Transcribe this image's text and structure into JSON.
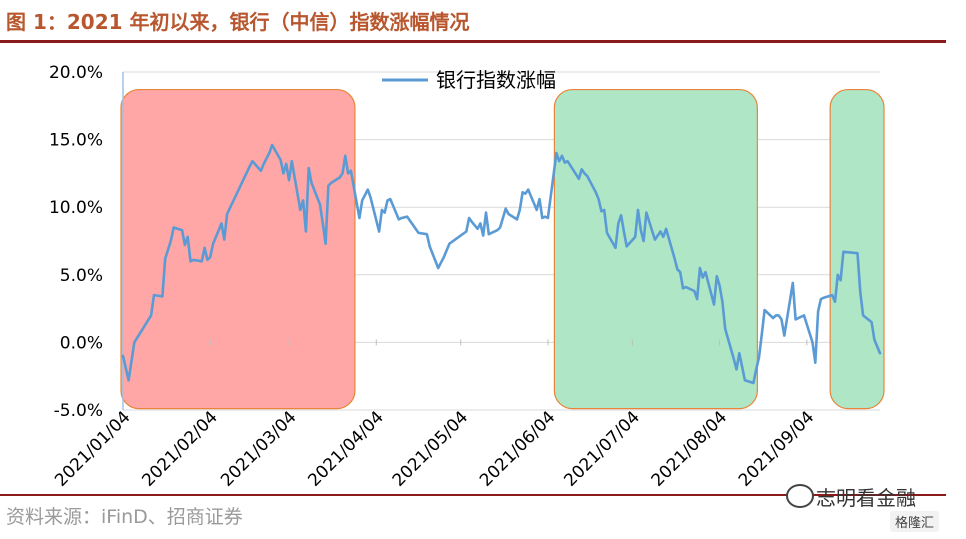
{
  "header": {
    "figure_title": "图 1：2021 年初以来，银行（中信）指数涨幅情况"
  },
  "footer": {
    "source": "资料来源：iFinD、招商证券"
  },
  "watermark": {
    "name": "志明看金融",
    "badge": "格隆汇"
  },
  "colors": {
    "title": "#b8562e",
    "rule": "#8b1a1a",
    "series": "#5b9bd5",
    "up_box_fill": "#ffa6a6",
    "down_box_fill": "#aee6c6",
    "box_border": "#e8853a"
  },
  "chart_data": {
    "type": "line",
    "title": "",
    "xlabel": "",
    "ylabel": "",
    "ylim": [
      -5,
      20
    ],
    "yticks": [
      -5,
      0,
      5,
      10,
      15,
      20
    ],
    "ytick_labels": [
      "-5.0%",
      "0.0%",
      "5.0%",
      "10.0%",
      "15.0%",
      "20.0%"
    ],
    "xlim": [
      "2021-01-04",
      "2021-09-30"
    ],
    "xticks": [
      "2021-01-04",
      "2021-02-04",
      "2021-03-04",
      "2021-04-04",
      "2021-05-04",
      "2021-06-04",
      "2021-07-04",
      "2021-08-04",
      "2021-09-04"
    ],
    "xtick_labels": [
      "2021/01/04",
      "2021/02/04",
      "2021/03/04",
      "2021/04/04",
      "2021/05/04",
      "2021/06/04",
      "2021/07/04",
      "2021/08/04",
      "2021/09/04"
    ],
    "grid": "horizontal",
    "legend": "top-center",
    "series": [
      {
        "name": "银行指数涨幅",
        "points": [
          [
            "2021-01-04",
            -1.0
          ],
          [
            "2021-01-06",
            -2.8
          ],
          [
            "2021-01-08",
            0.0
          ],
          [
            "2021-01-11",
            1.0
          ],
          [
            "2021-01-14",
            2.0
          ],
          [
            "2021-01-15",
            3.5
          ],
          [
            "2021-01-18",
            3.4
          ],
          [
            "2021-01-19",
            6.2
          ],
          [
            "2021-01-21",
            7.5
          ],
          [
            "2021-01-22",
            8.5
          ],
          [
            "2021-01-25",
            8.3
          ],
          [
            "2021-01-26",
            7.2
          ],
          [
            "2021-01-27",
            7.8
          ],
          [
            "2021-01-28",
            6.0
          ],
          [
            "2021-01-29",
            6.1
          ],
          [
            "2021-02-01",
            6.0
          ],
          [
            "2021-02-02",
            7.0
          ],
          [
            "2021-02-03",
            6.1
          ],
          [
            "2021-02-04",
            6.3
          ],
          [
            "2021-02-05",
            7.3
          ],
          [
            "2021-02-08",
            8.8
          ],
          [
            "2021-02-09",
            7.6
          ],
          [
            "2021-02-10",
            9.5
          ],
          [
            "2021-02-18",
            13.0
          ],
          [
            "2021-02-19",
            13.4
          ],
          [
            "2021-02-22",
            12.7
          ],
          [
            "2021-02-23",
            13.2
          ],
          [
            "2021-02-25",
            14.0
          ],
          [
            "2021-02-26",
            14.6
          ],
          [
            "2021-03-01",
            13.5
          ],
          [
            "2021-03-02",
            12.5
          ],
          [
            "2021-03-03",
            13.2
          ],
          [
            "2021-03-04",
            12.0
          ],
          [
            "2021-03-05",
            13.4
          ],
          [
            "2021-03-08",
            9.8
          ],
          [
            "2021-03-09",
            10.5
          ],
          [
            "2021-03-10",
            8.2
          ],
          [
            "2021-03-11",
            12.9
          ],
          [
            "2021-03-12",
            11.8
          ],
          [
            "2021-03-15",
            10.2
          ],
          [
            "2021-03-16",
            8.8
          ],
          [
            "2021-03-17",
            7.3
          ],
          [
            "2021-03-18",
            11.6
          ],
          [
            "2021-03-19",
            11.8
          ],
          [
            "2021-03-22",
            12.2
          ],
          [
            "2021-03-23",
            12.5
          ],
          [
            "2021-03-24",
            13.8
          ],
          [
            "2021-03-25",
            12.5
          ],
          [
            "2021-03-26",
            12.7
          ],
          [
            "2021-03-29",
            9.2
          ],
          [
            "2021-03-30",
            10.5
          ],
          [
            "2021-04-01",
            11.3
          ],
          [
            "2021-04-02",
            10.7
          ],
          [
            "2021-04-05",
            8.2
          ],
          [
            "2021-04-06",
            9.8
          ],
          [
            "2021-04-07",
            9.6
          ],
          [
            "2021-04-08",
            10.5
          ],
          [
            "2021-04-09",
            10.6
          ],
          [
            "2021-04-12",
            9.1
          ],
          [
            "2021-04-13",
            9.2
          ],
          [
            "2021-04-15",
            9.3
          ],
          [
            "2021-04-16",
            9.0
          ],
          [
            "2021-04-19",
            8.1
          ],
          [
            "2021-04-22",
            8.0
          ],
          [
            "2021-04-23",
            7.1
          ],
          [
            "2021-04-26",
            5.5
          ],
          [
            "2021-04-28",
            6.3
          ],
          [
            "2021-04-30",
            7.3
          ],
          [
            "2021-05-06",
            8.2
          ],
          [
            "2021-05-07",
            9.2
          ],
          [
            "2021-05-08",
            8.9
          ],
          [
            "2021-05-10",
            8.4
          ],
          [
            "2021-05-11",
            8.8
          ],
          [
            "2021-05-12",
            7.9
          ],
          [
            "2021-05-13",
            9.6
          ],
          [
            "2021-05-14",
            8.0
          ],
          [
            "2021-05-17",
            8.3
          ],
          [
            "2021-05-18",
            8.5
          ],
          [
            "2021-05-20",
            9.9
          ],
          [
            "2021-05-21",
            9.5
          ],
          [
            "2021-05-24",
            9.1
          ],
          [
            "2021-05-25",
            9.8
          ],
          [
            "2021-05-26",
            11.1
          ],
          [
            "2021-05-27",
            11.0
          ],
          [
            "2021-05-28",
            11.3
          ],
          [
            "2021-05-31",
            9.8
          ],
          [
            "2021-06-01",
            10.6
          ],
          [
            "2021-06-02",
            9.2
          ],
          [
            "2021-06-03",
            9.3
          ],
          [
            "2021-06-04",
            9.2
          ],
          [
            "2021-06-07",
            14.0
          ],
          [
            "2021-06-08",
            13.4
          ],
          [
            "2021-06-09",
            13.8
          ],
          [
            "2021-06-10",
            13.3
          ],
          [
            "2021-06-11",
            13.4
          ],
          [
            "2021-06-15",
            12.1
          ],
          [
            "2021-06-16",
            12.8
          ],
          [
            "2021-06-17",
            12.5
          ],
          [
            "2021-06-18",
            12.3
          ],
          [
            "2021-06-21",
            11.1
          ],
          [
            "2021-06-22",
            10.6
          ],
          [
            "2021-06-23",
            9.7
          ],
          [
            "2021-06-24",
            9.8
          ],
          [
            "2021-06-25",
            8.1
          ],
          [
            "2021-06-28",
            7.0
          ],
          [
            "2021-06-29",
            8.8
          ],
          [
            "2021-06-30",
            9.4
          ],
          [
            "2021-07-01",
            8.2
          ],
          [
            "2021-07-02",
            7.1
          ],
          [
            "2021-07-05",
            7.8
          ],
          [
            "2021-07-06",
            9.8
          ],
          [
            "2021-07-07",
            8.3
          ],
          [
            "2021-07-08",
            7.5
          ],
          [
            "2021-07-09",
            9.6
          ],
          [
            "2021-07-12",
            7.6
          ],
          [
            "2021-07-13",
            7.9
          ],
          [
            "2021-07-14",
            8.2
          ],
          [
            "2021-07-15",
            7.8
          ],
          [
            "2021-07-16",
            8.4
          ],
          [
            "2021-07-19",
            6.2
          ],
          [
            "2021-07-20",
            5.4
          ],
          [
            "2021-07-21",
            5.2
          ],
          [
            "2021-07-22",
            4.0
          ],
          [
            "2021-07-23",
            4.1
          ],
          [
            "2021-07-26",
            3.8
          ],
          [
            "2021-07-27",
            3.2
          ],
          [
            "2021-07-28",
            5.5
          ],
          [
            "2021-07-29",
            4.8
          ],
          [
            "2021-07-30",
            5.2
          ],
          [
            "2021-08-02",
            2.8
          ],
          [
            "2021-08-03",
            4.9
          ],
          [
            "2021-08-04",
            4.2
          ],
          [
            "2021-08-05",
            3.0
          ],
          [
            "2021-08-06",
            1.0
          ],
          [
            "2021-08-09",
            -1.2
          ],
          [
            "2021-08-10",
            -2.0
          ],
          [
            "2021-08-11",
            -0.8
          ],
          [
            "2021-08-12",
            -1.8
          ],
          [
            "2021-08-13",
            -2.8
          ],
          [
            "2021-08-16",
            -3.0
          ],
          [
            "2021-08-17",
            -2.0
          ],
          [
            "2021-08-18",
            -1.1
          ],
          [
            "2021-08-19",
            0.6
          ],
          [
            "2021-08-20",
            2.4
          ],
          [
            "2021-08-23",
            1.8
          ],
          [
            "2021-08-24",
            2.0
          ],
          [
            "2021-08-25",
            2.0
          ],
          [
            "2021-08-26",
            1.7
          ],
          [
            "2021-08-27",
            0.5
          ],
          [
            "2021-08-30",
            4.4
          ],
          [
            "2021-08-31",
            1.7
          ],
          [
            "2021-09-01",
            1.8
          ],
          [
            "2021-09-02",
            1.9
          ],
          [
            "2021-09-03",
            2.0
          ],
          [
            "2021-09-06",
            0.0
          ],
          [
            "2021-09-07",
            -1.5
          ],
          [
            "2021-09-08",
            2.3
          ],
          [
            "2021-09-09",
            3.2
          ],
          [
            "2021-09-10",
            3.3
          ],
          [
            "2021-09-13",
            3.5
          ],
          [
            "2021-09-14",
            3.0
          ],
          [
            "2021-09-15",
            5.0
          ],
          [
            "2021-09-16",
            4.6
          ],
          [
            "2021-09-17",
            6.7
          ],
          [
            "2021-09-22",
            6.6
          ],
          [
            "2021-09-23",
            3.7
          ],
          [
            "2021-09-24",
            2.0
          ],
          [
            "2021-09-27",
            1.5
          ],
          [
            "2021-09-28",
            0.2
          ],
          [
            "2021-09-29",
            -0.3
          ],
          [
            "2021-09-30",
            -0.8
          ]
        ]
      }
    ],
    "highlight_boxes": [
      {
        "from": "2021-01-04",
        "to": "2021-03-26",
        "fill": "#ffa6a6"
      },
      {
        "from": "2021-06-07",
        "to": "2021-08-16",
        "fill": "#aee6c6"
      },
      {
        "from": "2021-09-13",
        "to": "2021-09-30",
        "fill": "#aee6c6"
      }
    ]
  }
}
